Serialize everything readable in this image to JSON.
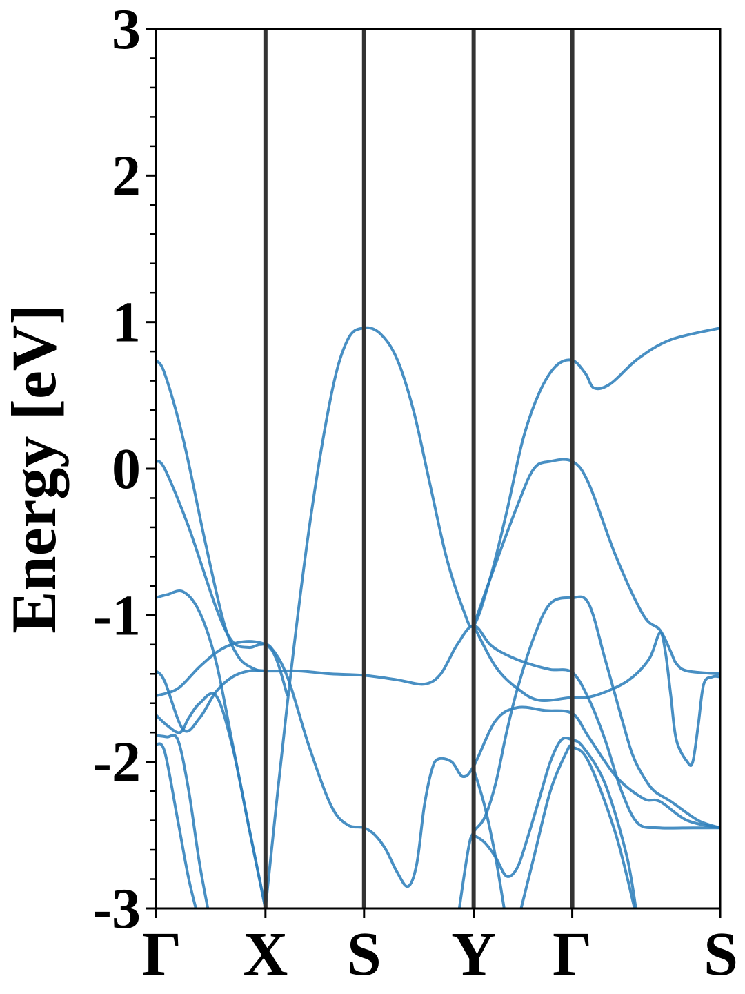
{
  "chart_data": {
    "type": "line",
    "title": "",
    "xlabel": "",
    "ylabel": "Energy [eV]",
    "ylim": [
      -3,
      3
    ],
    "grid": false,
    "line_color": "#2f7fbb",
    "divider_color": "#333333",
    "yticks": [
      {
        "value": 3,
        "label": "3"
      },
      {
        "value": 2,
        "label": "2"
      },
      {
        "value": 1,
        "label": "1"
      },
      {
        "value": 0,
        "label": "0"
      },
      {
        "value": -1,
        "label": "-1"
      },
      {
        "value": -2,
        "label": "-2"
      },
      {
        "value": -3,
        "label": "-3"
      }
    ],
    "kpoints": [
      {
        "label": "Γ",
        "x": 0.0
      },
      {
        "label": "X",
        "x": 1.0
      },
      {
        "label": "S",
        "x": 1.9
      },
      {
        "label": "Y",
        "x": 2.9
      },
      {
        "label": "Γ",
        "x": 3.8
      },
      {
        "label": "S",
        "x": 5.15
      }
    ],
    "series": [
      {
        "points": [
          [
            0,
            0.74
          ],
          [
            0.08,
            0.65
          ],
          [
            0.25,
            0.2
          ],
          [
            0.45,
            -0.5
          ],
          [
            0.62,
            -1.05
          ],
          [
            0.75,
            -1.28
          ],
          [
            0.88,
            -1.36
          ],
          [
            1.0,
            -1.38
          ],
          [
            1.3,
            -1.38
          ],
          [
            1.6,
            -1.4
          ],
          [
            1.9,
            -1.41
          ],
          [
            2.2,
            -1.44
          ],
          [
            2.45,
            -1.47
          ],
          [
            2.6,
            -1.4
          ],
          [
            2.75,
            -1.2
          ],
          [
            2.9,
            -1.07
          ],
          [
            3.05,
            -1.2
          ],
          [
            3.2,
            -1.27
          ],
          [
            3.4,
            -1.33
          ],
          [
            3.6,
            -1.37
          ],
          [
            3.8,
            -1.39
          ],
          [
            3.95,
            -1.57
          ],
          [
            4.1,
            -1.85
          ],
          [
            4.25,
            -2.2
          ],
          [
            4.4,
            -2.42
          ],
          [
            4.6,
            -2.45
          ],
          [
            4.9,
            -2.45
          ],
          [
            5.15,
            -2.45
          ]
        ]
      },
      {
        "points": [
          [
            0,
            0.05
          ],
          [
            0.08,
            0.0
          ],
          [
            0.3,
            -0.4
          ],
          [
            0.55,
            -0.95
          ],
          [
            0.7,
            -1.18
          ],
          [
            0.85,
            -1.22
          ],
          [
            0.95,
            -1.2
          ],
          [
            1.05,
            -1.22
          ],
          [
            1.2,
            -1.42
          ],
          [
            1.4,
            -1.9
          ],
          [
            1.6,
            -2.3
          ],
          [
            1.75,
            -2.43
          ],
          [
            1.9,
            -2.45
          ],
          [
            2.0,
            -2.5
          ],
          [
            2.1,
            -2.6
          ],
          [
            2.2,
            -2.75
          ],
          [
            2.3,
            -2.85
          ],
          [
            2.38,
            -2.7
          ],
          [
            2.45,
            -2.3
          ],
          [
            2.52,
            -2.05
          ],
          [
            2.58,
            -1.98
          ],
          [
            2.7,
            -2.0
          ],
          [
            2.8,
            -2.1
          ],
          [
            2.9,
            -2.03
          ],
          [
            3.1,
            -1.72
          ],
          [
            3.3,
            -1.63
          ],
          [
            3.55,
            -1.65
          ],
          [
            3.8,
            -1.67
          ],
          [
            3.95,
            -1.83
          ],
          [
            4.2,
            -2.1
          ],
          [
            4.45,
            -2.25
          ],
          [
            4.6,
            -2.27
          ],
          [
            4.85,
            -2.4
          ],
          [
            5.15,
            -2.45
          ]
        ]
      },
      {
        "points": [
          [
            0,
            -0.88
          ],
          [
            0.1,
            -0.86
          ],
          [
            0.25,
            -0.84
          ],
          [
            0.4,
            -0.98
          ],
          [
            0.55,
            -1.32
          ],
          [
            0.7,
            -1.88
          ],
          [
            0.85,
            -2.45
          ],
          [
            1.0,
            -3.0
          ]
        ]
      },
      {
        "points": [
          [
            1.0,
            -3.0
          ],
          [
            1.2,
            -1.6
          ],
          [
            1.4,
            -0.4
          ],
          [
            1.6,
            0.5
          ],
          [
            1.75,
            0.88
          ],
          [
            1.9,
            0.96
          ],
          [
            2.05,
            0.92
          ],
          [
            2.2,
            0.75
          ],
          [
            2.35,
            0.4
          ],
          [
            2.5,
            -0.1
          ],
          [
            2.65,
            -0.6
          ],
          [
            2.8,
            -0.95
          ],
          [
            2.9,
            -1.07
          ],
          [
            3.05,
            -0.75
          ],
          [
            3.2,
            -0.3
          ],
          [
            3.35,
            0.2
          ],
          [
            3.5,
            0.52
          ],
          [
            3.65,
            0.7
          ],
          [
            3.8,
            0.74
          ],
          [
            3.92,
            0.65
          ],
          [
            4.0,
            0.55
          ],
          [
            4.15,
            0.58
          ],
          [
            4.4,
            0.75
          ],
          [
            4.7,
            0.88
          ],
          [
            5.15,
            0.96
          ]
        ]
      },
      {
        "points": [
          [
            0,
            -1.55
          ],
          [
            0.2,
            -1.5
          ],
          [
            0.4,
            -1.35
          ],
          [
            0.6,
            -1.23
          ],
          [
            0.8,
            -1.18
          ],
          [
            1.0,
            -1.2
          ],
          [
            1.1,
            -1.3
          ],
          [
            1.2,
            -1.55
          ]
        ]
      },
      {
        "points": [
          [
            0,
            -1.38
          ],
          [
            0.08,
            -1.45
          ],
          [
            0.25,
            -1.78
          ],
          [
            0.4,
            -1.7
          ],
          [
            0.55,
            -1.52
          ],
          [
            0.7,
            -1.42
          ],
          [
            0.85,
            -1.38
          ],
          [
            1.0,
            -1.38
          ]
        ]
      },
      {
        "points": [
          [
            0,
            -1.68
          ],
          [
            0.1,
            -1.75
          ],
          [
            0.22,
            -1.8
          ],
          [
            0.3,
            -1.7
          ],
          [
            0.4,
            -1.6
          ],
          [
            0.55,
            -1.55
          ],
          [
            0.7,
            -1.9
          ],
          [
            0.85,
            -2.45
          ],
          [
            1.0,
            -3.0
          ]
        ]
      },
      {
        "points": [
          [
            0,
            -1.82
          ],
          [
            0.1,
            -1.83
          ],
          [
            0.2,
            -1.85
          ],
          [
            0.3,
            -2.2
          ],
          [
            0.4,
            -2.7
          ],
          [
            0.5,
            -3.1
          ]
        ]
      },
      {
        "points": [
          [
            0,
            -1.88
          ],
          [
            0.08,
            -1.93
          ],
          [
            0.2,
            -2.4
          ],
          [
            0.3,
            -2.8
          ],
          [
            0.4,
            -3.1
          ]
        ]
      },
      {
        "points": [
          [
            2.75,
            -3.1
          ],
          [
            2.85,
            -2.6
          ],
          [
            2.9,
            -2.48
          ],
          [
            3.0,
            -2.38
          ],
          [
            3.1,
            -2.15
          ],
          [
            3.2,
            -1.8
          ],
          [
            3.3,
            -1.5
          ],
          [
            3.45,
            -1.15
          ],
          [
            3.6,
            -0.92
          ],
          [
            3.8,
            -0.88
          ],
          [
            3.95,
            -0.92
          ],
          [
            4.1,
            -1.3
          ],
          [
            4.25,
            -1.7
          ],
          [
            4.35,
            -1.95
          ],
          [
            4.45,
            -2.1
          ],
          [
            4.55,
            -2.2
          ],
          [
            4.7,
            -2.27
          ],
          [
            4.95,
            -2.4
          ],
          [
            5.15,
            -2.45
          ]
        ]
      },
      {
        "points": [
          [
            2.9,
            -2.5
          ],
          [
            3.0,
            -2.55
          ],
          [
            3.1,
            -2.65
          ],
          [
            3.2,
            -2.78
          ],
          [
            3.3,
            -2.72
          ],
          [
            3.4,
            -2.5
          ],
          [
            3.5,
            -2.25
          ],
          [
            3.6,
            -2.0
          ],
          [
            3.7,
            -1.85
          ],
          [
            3.8,
            -1.85
          ],
          [
            3.9,
            -1.9
          ],
          [
            4.1,
            -2.15
          ],
          [
            4.3,
            -2.65
          ],
          [
            4.4,
            -3.1
          ]
        ]
      },
      {
        "points": [
          [
            2.9,
            -2.05
          ],
          [
            3.0,
            -2.3
          ],
          [
            3.1,
            -2.65
          ],
          [
            3.2,
            -3.1
          ]
        ]
      },
      {
        "points": [
          [
            3.3,
            -3.1
          ],
          [
            3.45,
            -2.65
          ],
          [
            3.6,
            -2.2
          ],
          [
            3.75,
            -1.93
          ],
          [
            3.8,
            -1.9
          ],
          [
            3.95,
            -2.0
          ],
          [
            4.2,
            -2.5
          ],
          [
            4.4,
            -3.1
          ]
        ]
      },
      {
        "points": [
          [
            2.9,
            -1.07
          ],
          [
            3.1,
            -0.65
          ],
          [
            3.3,
            -0.25
          ],
          [
            3.45,
            0.0
          ],
          [
            3.6,
            0.05
          ],
          [
            3.8,
            0.05
          ],
          [
            3.95,
            -0.1
          ],
          [
            4.2,
            -0.6
          ],
          [
            4.45,
            -1.0
          ],
          [
            4.6,
            -1.1
          ],
          [
            4.7,
            -1.25
          ],
          [
            4.75,
            -1.33
          ],
          [
            4.85,
            -1.38
          ],
          [
            5.15,
            -1.4
          ]
        ]
      },
      {
        "points": [
          [
            2.9,
            -1.07
          ],
          [
            3.1,
            -1.35
          ],
          [
            3.3,
            -1.5
          ],
          [
            3.5,
            -1.58
          ],
          [
            3.8,
            -1.56
          ],
          [
            4.0,
            -1.55
          ],
          [
            4.3,
            -1.45
          ],
          [
            4.5,
            -1.3
          ],
          [
            4.6,
            -1.12
          ],
          [
            4.65,
            -1.25
          ],
          [
            4.7,
            -1.55
          ],
          [
            4.75,
            -1.85
          ],
          [
            4.85,
            -2.0
          ],
          [
            4.9,
            -2.0
          ],
          [
            4.95,
            -1.75
          ],
          [
            5.0,
            -1.47
          ],
          [
            5.08,
            -1.42
          ],
          [
            5.15,
            -1.42
          ]
        ]
      }
    ]
  }
}
